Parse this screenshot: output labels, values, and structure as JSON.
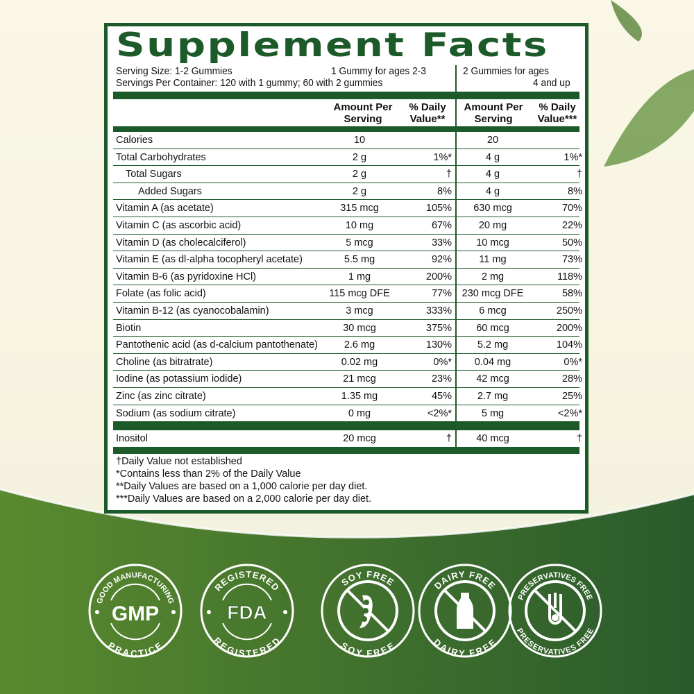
{
  "title": "Supplement Facts",
  "serving": {
    "size": "Serving Size: 1-2 Gummies",
    "per_container": "Servings Per Container: 120 with 1 gummy; 60 with 2 gummies",
    "col1": "1 Gummy for ages 2-3",
    "col2_line1": "2 Gummies for ages",
    "col2_line2": "4 and up"
  },
  "headers": {
    "amount1": "Amount Per Serving",
    "dv1": "% Daily Value**",
    "amount2": "Amount Per Serving",
    "dv2": "% Daily Value***"
  },
  "rows": [
    {
      "name": "Calories",
      "a1": "10",
      "d1": "",
      "a2": "20",
      "d2": ""
    },
    {
      "name": "Total Carbohydrates",
      "a1": "2 g",
      "d1": "1%*",
      "a2": "4 g",
      "d2": "1%*"
    },
    {
      "name": "Total Sugars",
      "a1": "2 g",
      "d1": "†",
      "a2": "4 g",
      "d2": "†"
    },
    {
      "name": "Added Sugars",
      "a1": "2 g",
      "d1": "8%",
      "a2": "4 g",
      "d2": "8%"
    },
    {
      "name": "Vitamin A (as acetate)",
      "a1": "315 mcg",
      "d1": "105%",
      "a2": "630 mcg",
      "d2": "70%"
    },
    {
      "name": "Vitamin C (as ascorbic acid)",
      "a1": "10 mg",
      "d1": "67%",
      "a2": "20 mg",
      "d2": "22%"
    },
    {
      "name": "Vitamin D (as cholecalciferol)",
      "a1": "5 mcg",
      "d1": "33%",
      "a2": "10 mcg",
      "d2": "50%"
    },
    {
      "name": "Vitamin E (as dl-alpha tocopheryl acetate)",
      "a1": "5.5 mg",
      "d1": "92%",
      "a2": "11 mg",
      "d2": "73%"
    },
    {
      "name": "Vitamin B-6 (as pyridoxine HCl)",
      "a1": "1 mg",
      "d1": "200%",
      "a2": "2 mg",
      "d2": "118%"
    },
    {
      "name": "Folate (as folic acid)",
      "a1": "115 mcg DFE",
      "d1": "77%",
      "a2": "230 mcg DFE",
      "d2": "58%"
    },
    {
      "name": "Vitamin B-12 (as cyanocobalamin)",
      "a1": "3 mcg",
      "d1": "333%",
      "a2": "6 mcg",
      "d2": "250%"
    },
    {
      "name": "Biotin",
      "a1": "30 mcg",
      "d1": "375%",
      "a2": "60 mcg",
      "d2": "200%"
    },
    {
      "name": "Pantothenic acid (as d-calcium pantothenate)",
      "a1": "2.6 mg",
      "d1": "130%",
      "a2": "5.2 mg",
      "d2": "104%"
    },
    {
      "name": "Choline (as bitratrate)",
      "a1": "0.02 mg",
      "d1": "0%*",
      "a2": "0.04 mg",
      "d2": "0%*"
    },
    {
      "name": "Iodine (as potassium iodide)",
      "a1": "21 mcg",
      "d1": "23%",
      "a2": "42 mcg",
      "d2": "28%"
    },
    {
      "name": "Zinc (as zinc citrate)",
      "a1": "1.35 mg",
      "d1": "45%",
      "a2": "2.7 mg",
      "d2": "25%"
    },
    {
      "name": "Sodium (as sodium citrate)",
      "a1": "0 mg",
      "d1": "<2%*",
      "a2": "5 mg",
      "d2": "<2%*"
    }
  ],
  "inositol": {
    "name": "Inositol",
    "a1": "20 mcg",
    "d1": "†",
    "a2": "40 mcg",
    "d2": "†"
  },
  "footnotes": [
    "†Daily Value not established",
    "*Contains less than 2% of the Daily Value",
    "**Daily Values are based on a 1,000 calorie per day diet.",
    "***Daily Values are based on a 2,000 calorie per day diet."
  ],
  "badges": [
    {
      "top": "GOOD MANUFACTURING",
      "center": "GMP",
      "bottom": "PRACTICE",
      "icon": "gmp-icon"
    },
    {
      "top": "REGISTERED",
      "center": "FDA",
      "bottom": "REGISTERED",
      "icon": "fda-icon"
    },
    {
      "top": "SOY FREE",
      "bottom": "SOY FREE",
      "icon": "soybean-icon"
    },
    {
      "top": "DAIRY FREE",
      "bottom": "DAIRY FREE",
      "icon": "milk-bottle-icon"
    },
    {
      "top": "PRESERVATIVES FREE",
      "bottom": "PRESERVATIVES FREE",
      "icon": "test-tube-icon"
    }
  ],
  "colors": {
    "brand_green": "#1c5a2a",
    "bg_green_left": "#5a8a2e",
    "bg_green_right": "#2a5a2c",
    "cream": "#faf7e6"
  }
}
